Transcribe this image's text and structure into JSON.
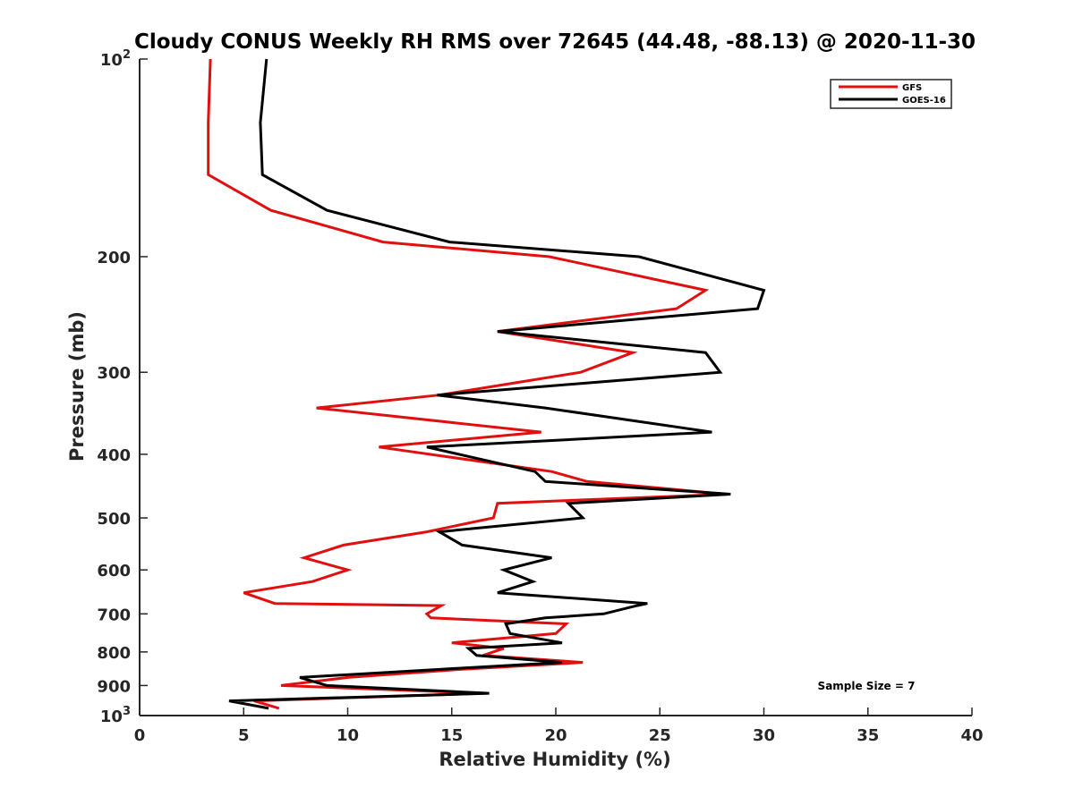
{
  "chart_data": {
    "type": "line",
    "title": "Cloudy CONUS Weekly RH RMS over 72645 (44.48, -88.13) @ 2020-11-30",
    "xlabel": "Relative Humidity (%)",
    "ylabel": "Pressure (mb)",
    "xlim": [
      0,
      40
    ],
    "ylim": [
      100,
      1000
    ],
    "yscale": "log",
    "y_reversed": true,
    "grid": false,
    "legend_position": "top-right",
    "x_ticks": [
      "0",
      "5",
      "10",
      "15",
      "20",
      "25",
      "30",
      "35",
      "40"
    ],
    "y_ticks": [
      {
        "value": 100,
        "base": "10",
        "exp": "2"
      },
      {
        "value": 200,
        "label": "200"
      },
      {
        "value": 300,
        "label": "300"
      },
      {
        "value": 400,
        "label": "400"
      },
      {
        "value": 500,
        "label": "500"
      },
      {
        "value": 600,
        "label": "600"
      },
      {
        "value": 700,
        "label": "700"
      },
      {
        "value": 800,
        "label": "800"
      },
      {
        "value": 900,
        "label": "900"
      },
      {
        "value": 1000,
        "base": "10",
        "exp": "3"
      }
    ],
    "annotation": "Sample Size = 7",
    "series": [
      {
        "name": "GFS",
        "color": "#e01010",
        "points": [
          {
            "x": 3.4,
            "p": 100
          },
          {
            "x": 3.3,
            "p": 125
          },
          {
            "x": 3.3,
            "p": 150
          },
          {
            "x": 6.3,
            "p": 170
          },
          {
            "x": 11.7,
            "p": 190
          },
          {
            "x": 19.7,
            "p": 200
          },
          {
            "x": 27.2,
            "p": 225
          },
          {
            "x": 25.8,
            "p": 240
          },
          {
            "x": 17.2,
            "p": 260
          },
          {
            "x": 23.7,
            "p": 280
          },
          {
            "x": 21.2,
            "p": 300
          },
          {
            "x": 14.4,
            "p": 325
          },
          {
            "x": 8.5,
            "p": 340
          },
          {
            "x": 19.3,
            "p": 370
          },
          {
            "x": 11.5,
            "p": 390
          },
          {
            "x": 19.8,
            "p": 425
          },
          {
            "x": 21.5,
            "p": 440
          },
          {
            "x": 28.2,
            "p": 460
          },
          {
            "x": 17.2,
            "p": 475
          },
          {
            "x": 17.0,
            "p": 500
          },
          {
            "x": 13.8,
            "p": 525
          },
          {
            "x": 9.8,
            "p": 550
          },
          {
            "x": 7.9,
            "p": 575
          },
          {
            "x": 10.0,
            "p": 600
          },
          {
            "x": 8.3,
            "p": 625
          },
          {
            "x": 5.0,
            "p": 650
          },
          {
            "x": 6.5,
            "p": 675
          },
          {
            "x": 14.5,
            "p": 680
          },
          {
            "x": 13.8,
            "p": 700
          },
          {
            "x": 14.0,
            "p": 710
          },
          {
            "x": 20.5,
            "p": 725
          },
          {
            "x": 20.0,
            "p": 750
          },
          {
            "x": 15.0,
            "p": 775
          },
          {
            "x": 17.5,
            "p": 790
          },
          {
            "x": 16.5,
            "p": 810
          },
          {
            "x": 21.3,
            "p": 830
          },
          {
            "x": 15.5,
            "p": 850
          },
          {
            "x": 10.0,
            "p": 875
          },
          {
            "x": 6.8,
            "p": 900
          },
          {
            "x": 16.6,
            "p": 925
          },
          {
            "x": 5.5,
            "p": 950
          },
          {
            "x": 6.7,
            "p": 975
          }
        ]
      },
      {
        "name": "GOES-16",
        "color": "#000000",
        "points": [
          {
            "x": 6.1,
            "p": 100
          },
          {
            "x": 5.8,
            "p": 125
          },
          {
            "x": 5.9,
            "p": 150
          },
          {
            "x": 9.0,
            "p": 170
          },
          {
            "x": 14.9,
            "p": 190
          },
          {
            "x": 24.0,
            "p": 200
          },
          {
            "x": 30.0,
            "p": 225
          },
          {
            "x": 29.7,
            "p": 240
          },
          {
            "x": 17.2,
            "p": 260
          },
          {
            "x": 27.2,
            "p": 280
          },
          {
            "x": 27.9,
            "p": 300
          },
          {
            "x": 14.3,
            "p": 325
          },
          {
            "x": 19.5,
            "p": 340
          },
          {
            "x": 27.5,
            "p": 370
          },
          {
            "x": 13.8,
            "p": 390
          },
          {
            "x": 19.0,
            "p": 425
          },
          {
            "x": 19.5,
            "p": 440
          },
          {
            "x": 28.4,
            "p": 460
          },
          {
            "x": 20.6,
            "p": 475
          },
          {
            "x": 21.3,
            "p": 500
          },
          {
            "x": 14.4,
            "p": 525
          },
          {
            "x": 15.5,
            "p": 550
          },
          {
            "x": 19.8,
            "p": 575
          },
          {
            "x": 17.5,
            "p": 600
          },
          {
            "x": 18.9,
            "p": 625
          },
          {
            "x": 17.2,
            "p": 650
          },
          {
            "x": 24.4,
            "p": 675
          },
          {
            "x": 23.9,
            "p": 680
          },
          {
            "x": 22.3,
            "p": 700
          },
          {
            "x": 19.5,
            "p": 710
          },
          {
            "x": 17.6,
            "p": 725
          },
          {
            "x": 17.8,
            "p": 750
          },
          {
            "x": 20.3,
            "p": 775
          },
          {
            "x": 15.8,
            "p": 790
          },
          {
            "x": 16.2,
            "p": 810
          },
          {
            "x": 20.3,
            "p": 830
          },
          {
            "x": 14.5,
            "p": 850
          },
          {
            "x": 7.7,
            "p": 875
          },
          {
            "x": 9.0,
            "p": 900
          },
          {
            "x": 16.8,
            "p": 925
          },
          {
            "x": 4.3,
            "p": 950
          },
          {
            "x": 6.2,
            "p": 975
          }
        ]
      }
    ]
  }
}
